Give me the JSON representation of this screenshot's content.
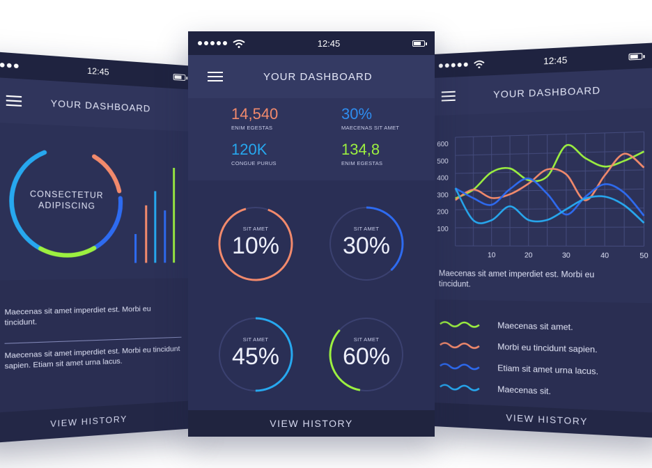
{
  "time": "12:45",
  "header_title": "YOUR DASHBOARD",
  "footer_label": "VIEW HISTORY",
  "left_phone": {
    "ring_label_1": "CONSECTETUR",
    "ring_label_2": "ADIPISCING",
    "text_1": "Maecenas sit amet imperdiet est. Morbi eu tincidunt.",
    "text_2": "Maecenas sit amet imperdiet est. Morbi eu tincidunt sapien. Etiam sit amet urna lacus.",
    "bar_levels": [
      0.3,
      0.6,
      0.75,
      0.55,
      1.0
    ],
    "bar_colors": [
      "#2e6bf0",
      "#f28a6c",
      "#27a8ef",
      "#2e6bf0",
      "#9cf040"
    ]
  },
  "center_phone": {
    "stats": [
      {
        "value": "14,540",
        "label": "ENIM EGESTAS",
        "color": "#f28a6c"
      },
      {
        "value": "30%",
        "label": "MAECENAS SIT AMET",
        "color": "#2e8df0"
      },
      {
        "value": "120K",
        "label": "CONGUE PURUS",
        "color": "#27a8ef"
      },
      {
        "value": "134,8",
        "label": "ENIM EGESTAS",
        "color": "#9cf040"
      }
    ],
    "gauges": [
      {
        "label": "SIT AMET",
        "value": "10%",
        "color": "#f28a6c"
      },
      {
        "label": "SIT AMET",
        "value": "30%",
        "color": "#2e6bf0"
      },
      {
        "label": "SIT AMET",
        "value": "45%",
        "color": "#27a8ef"
      },
      {
        "label": "SIT AMET",
        "value": "60%",
        "color": "#9cf040"
      }
    ]
  },
  "right_phone": {
    "description": "Maecenas sit amet imperdiet est. Morbi eu tincidunt.",
    "legend": [
      {
        "label": "Maecenas sit amet.",
        "color": "#9cf040"
      },
      {
        "label": "Morbi eu tincidunt sapien.",
        "color": "#f28a6c"
      },
      {
        "label": "Etiam sit amet urna lacus.",
        "color": "#2e6bf0"
      },
      {
        "label": "Maecenas sit.",
        "color": "#27a8ef"
      }
    ]
  },
  "chart_data": {
    "type": "line",
    "x_ticks": [
      "10",
      "20",
      "30",
      "40",
      "50"
    ],
    "y_ticks": [
      "100",
      "200",
      "300",
      "400",
      "500",
      "600"
    ],
    "xlim": [
      0,
      50
    ],
    "ylim": [
      0,
      640
    ],
    "grid": true,
    "series": [
      {
        "color": "#9cf040",
        "x": [
          0,
          5,
          10,
          15,
          20,
          25,
          30,
          35,
          40,
          45,
          50
        ],
        "y": [
          280,
          330,
          430,
          450,
          380,
          400,
          575,
          500,
          450,
          480,
          530
        ]
      },
      {
        "color": "#f28a6c",
        "x": [
          0,
          5,
          10,
          15,
          20,
          25,
          30,
          35,
          40,
          45,
          50
        ],
        "y": [
          270,
          330,
          280,
          300,
          360,
          440,
          410,
          260,
          400,
          520,
          440
        ]
      },
      {
        "color": "#2e6bf0",
        "x": [
          0,
          5,
          10,
          15,
          20,
          25,
          30,
          35,
          40,
          45,
          50
        ],
        "y": [
          340,
          280,
          240,
          330,
          390,
          300,
          180,
          280,
          350,
          300,
          170
        ]
      },
      {
        "color": "#27a8ef",
        "x": [
          0,
          5,
          10,
          15,
          20,
          25,
          30,
          35,
          40,
          45,
          50
        ],
        "y": [
          340,
          150,
          150,
          230,
          150,
          150,
          210,
          270,
          280,
          230,
          130
        ]
      }
    ]
  }
}
